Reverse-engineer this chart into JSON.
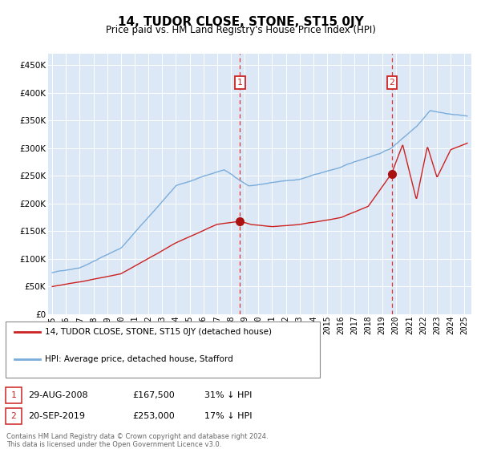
{
  "title": "14, TUDOR CLOSE, STONE, ST15 0JY",
  "subtitle": "Price paid vs. HM Land Registry's House Price Index (HPI)",
  "ylim": [
    0,
    470000
  ],
  "yticks": [
    0,
    50000,
    100000,
    150000,
    200000,
    250000,
    300000,
    350000,
    400000,
    450000
  ],
  "marker1_x": 2008.67,
  "marker2_x": 2019.72,
  "marker1_price": 167500,
  "marker2_price": 253000,
  "legend_line1": "14, TUDOR CLOSE, STONE, ST15 0JY (detached house)",
  "legend_line2": "HPI: Average price, detached house, Stafford",
  "row1_date": "29-AUG-2008",
  "row1_price": "£167,500",
  "row1_pct": "31% ↓ HPI",
  "row2_date": "20-SEP-2019",
  "row2_price": "£253,000",
  "row2_pct": "17% ↓ HPI",
  "footnote": "Contains HM Land Registry data © Crown copyright and database right 2024.\nThis data is licensed under the Open Government Licence v3.0.",
  "hpi_color": "#7aaddc",
  "price_color": "#cc2222",
  "marker_color": "#cc2222",
  "vline_color": "#dd3333",
  "bg_color": "#dce8f5",
  "dot_color": "#aa1111"
}
